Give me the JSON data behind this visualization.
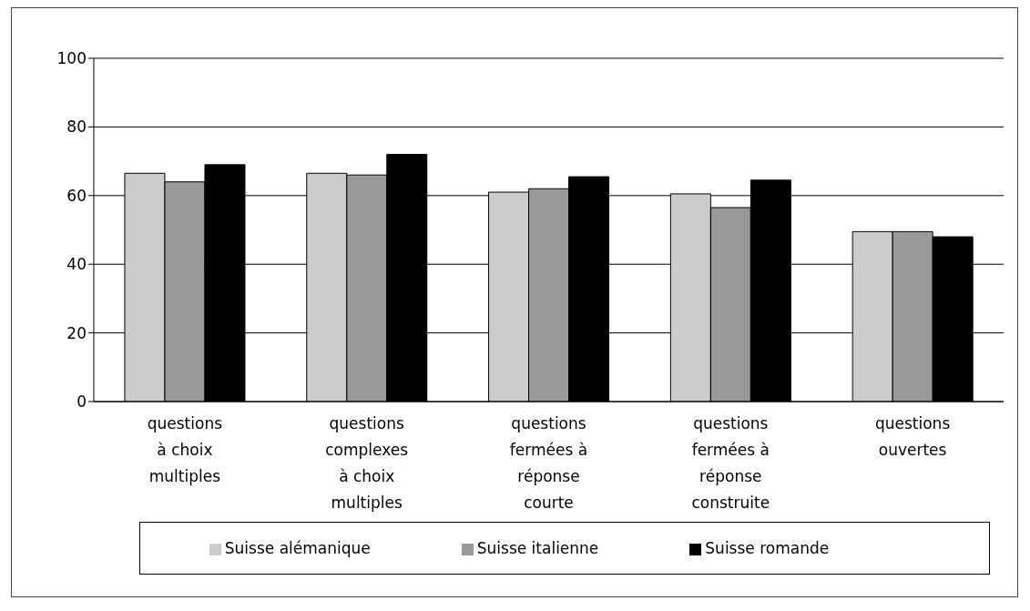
{
  "chart_data": {
    "type": "bar",
    "categories": [
      "questions à choix multiples",
      "questions complexes à choix multiples",
      "questions fermées à réponse courte",
      "questions fermées à réponse construite",
      "questions ouvertes"
    ],
    "series": [
      {
        "name": "Suisse alémanique",
        "color": "#cccccc",
        "values": [
          66.5,
          66.5,
          61,
          60.5,
          49.5
        ]
      },
      {
        "name": "Suisse italienne",
        "color": "#999999",
        "values": [
          64,
          66,
          62,
          56.5,
          49.5
        ]
      },
      {
        "name": "Suisse romande",
        "color": "#000000",
        "values": [
          69,
          72,
          65.5,
          64.5,
          48
        ]
      }
    ],
    "ylim": [
      0,
      100
    ],
    "yticks": [
      0,
      20,
      40,
      60,
      80,
      100
    ],
    "grid": "y",
    "legend": "bottom"
  }
}
